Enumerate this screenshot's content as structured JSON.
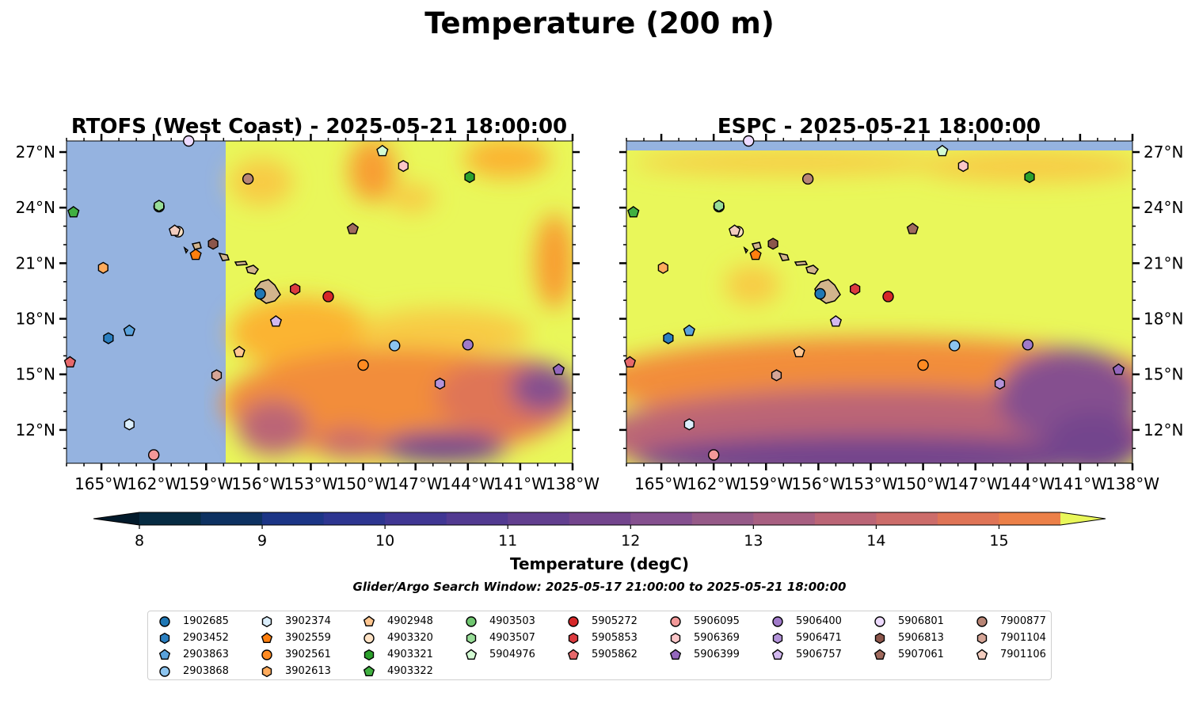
{
  "figure": {
    "suptitle": "Temperature (200 m)",
    "colorbar_label": "Temperature (degC)",
    "search_window": "Glider/Argo Search Window: 2025-05-17 21:00:00 to 2025-05-21 18:00:00"
  },
  "chart_data": [
    {
      "type": "heatmap",
      "title": "RTOFS (West Coast) - 2025-05-21 18:00:00",
      "xlabel": "",
      "ylabel": "",
      "x_ticks": [
        "165°W",
        "162°W",
        "159°W",
        "156°W",
        "153°W",
        "150°W",
        "147°W",
        "144°W",
        "141°W",
        "138°W"
      ],
      "y_ticks": [
        "27°N",
        "24°N",
        "21°N",
        "18°N",
        "15°N",
        "12°N"
      ],
      "xlim": [
        -167,
        -138
      ],
      "ylim": [
        10.2,
        27.6
      ],
      "model_domain_west_edge_lon": -157.9,
      "no_data_color": "#95b3e0",
      "grid": false
    },
    {
      "type": "heatmap",
      "title": "ESPC - 2025-05-21 18:00:00",
      "xlabel": "",
      "ylabel": "",
      "x_ticks": [
        "165°W",
        "162°W",
        "159°W",
        "156°W",
        "153°W",
        "150°W",
        "147°W",
        "144°W",
        "141°W",
        "138°W"
      ],
      "y_ticks": [
        "27°N",
        "24°N",
        "21°N",
        "18°N",
        "15°N",
        "12°N"
      ],
      "xlim": [
        -167,
        -138
      ],
      "ylim": [
        10.2,
        27.6
      ],
      "model_domain_north_edge_lat": 27.1,
      "no_data_color": "#95b3e0",
      "grid": false
    }
  ],
  "colorbar": {
    "min": 8,
    "max": 15.5,
    "step": 0.5,
    "ticks": [
      "8",
      "9",
      "10",
      "11",
      "12",
      "13",
      "14",
      "15"
    ],
    "colors": [
      "#062b42",
      "#0d3161",
      "#1c3586",
      "#2d3590",
      "#403693",
      "#523a91",
      "#623f8f",
      "#73458d",
      "#85508f",
      "#965a88",
      "#a85f81",
      "#bb6576",
      "#cc6c6a",
      "#df7456",
      "#ec8048",
      "#f28d3b",
      "#f89e30",
      "#fbb433",
      "#f8cb45",
      "#e9f75a"
    ],
    "extend": "both"
  },
  "legend": {
    "columns": [
      [
        {
          "label": "1902685",
          "marker": "circle",
          "color": "#1f77b4"
        },
        {
          "label": "2903452",
          "marker": "hexagon",
          "color": "#2b7fc0"
        },
        {
          "label": "2903863",
          "marker": "pentagon",
          "color": "#5aa2dc"
        },
        {
          "label": "2903868",
          "marker": "circle",
          "color": "#8cc4ef"
        }
      ],
      [
        {
          "label": "3902374",
          "marker": "hexagon",
          "color": "#dbeefc"
        },
        {
          "label": "3902559",
          "marker": "pentagon",
          "color": "#ff7f0e"
        },
        {
          "label": "3902561",
          "marker": "circle",
          "color": "#ff8b22"
        },
        {
          "label": "3902613",
          "marker": "hexagon",
          "color": "#ffab5c"
        }
      ],
      [
        {
          "label": "4902948",
          "marker": "pentagon",
          "color": "#ffc690"
        },
        {
          "label": "4903320",
          "marker": "circle",
          "color": "#ffe2c4"
        },
        {
          "label": "4903321",
          "marker": "hexagon",
          "color": "#2ca02c"
        },
        {
          "label": "4903322",
          "marker": "pentagon",
          "color": "#41b041"
        }
      ],
      [
        {
          "label": "4903503",
          "marker": "circle",
          "color": "#70c670"
        },
        {
          "label": "4903507",
          "marker": "hexagon",
          "color": "#98dd98"
        },
        {
          "label": "5904976",
          "marker": "pentagon",
          "color": "#d3fbd3"
        }
      ],
      [
        {
          "label": "5905272",
          "marker": "circle",
          "color": "#d62728"
        },
        {
          "label": "5905853",
          "marker": "hexagon",
          "color": "#dc3b3f"
        },
        {
          "label": "5905862",
          "marker": "pentagon",
          "color": "#e6686b"
        }
      ],
      [
        {
          "label": "5906095",
          "marker": "circle",
          "color": "#f29898"
        },
        {
          "label": "5906369",
          "marker": "hexagon",
          "color": "#fbc6c8"
        },
        {
          "label": "5906399",
          "marker": "pentagon",
          "color": "#9467bd"
        }
      ],
      [
        {
          "label": "5906400",
          "marker": "circle",
          "color": "#a07ac9"
        },
        {
          "label": "5906471",
          "marker": "hexagon",
          "color": "#b393d9"
        },
        {
          "label": "5906757",
          "marker": "pentagon",
          "color": "#d2b8ef"
        }
      ],
      [
        {
          "label": "5906801",
          "marker": "circle",
          "color": "#eedbff"
        },
        {
          "label": "5906813",
          "marker": "hexagon",
          "color": "#8c564b"
        },
        {
          "label": "5907061",
          "marker": "pentagon",
          "color": "#a06a5d"
        }
      ],
      [
        {
          "label": "7900877",
          "marker": "circle",
          "color": "#b88575"
        },
        {
          "label": "7901104",
          "marker": "hexagon",
          "color": "#d5a597"
        },
        {
          "label": "7901106",
          "marker": "pentagon",
          "color": "#f3cdbf"
        }
      ]
    ]
  },
  "floats": [
    {
      "id": "1902685",
      "lon": -155.9,
      "lat": 19.35,
      "marker": "circle",
      "color": "#1f77b4"
    },
    {
      "id": "2903452",
      "lon": -164.6,
      "lat": 16.95,
      "marker": "hexagon",
      "color": "#2b7fc0"
    },
    {
      "id": "2903863",
      "lon": -163.4,
      "lat": 17.35,
      "marker": "pentagon",
      "color": "#5aa2dc"
    },
    {
      "id": "2903868",
      "lon": -148.2,
      "lat": 16.55,
      "marker": "circle",
      "color": "#8cc4ef"
    },
    {
      "id": "3902374",
      "lon": -163.4,
      "lat": 12.3,
      "marker": "hexagon",
      "color": "#dbeefc"
    },
    {
      "id": "3902559",
      "lon": -159.6,
      "lat": 21.45,
      "marker": "pentagon",
      "color": "#ff7f0e"
    },
    {
      "id": "3902561",
      "lon": -150.0,
      "lat": 15.5,
      "marker": "circle",
      "color": "#ff8b22"
    },
    {
      "id": "3902613",
      "lon": -164.9,
      "lat": 20.75,
      "marker": "hexagon",
      "color": "#ffab5c"
    },
    {
      "id": "4902948",
      "lon": -157.1,
      "lat": 16.2,
      "marker": "pentagon",
      "color": "#ffc690"
    },
    {
      "id": "4903320",
      "lon": -160.6,
      "lat": 22.7,
      "marker": "circle",
      "color": "#ffe2c4"
    },
    {
      "id": "4903321",
      "lon": -143.9,
      "lat": 25.65,
      "marker": "hexagon",
      "color": "#2ca02c"
    },
    {
      "id": "4903322",
      "lon": -166.6,
      "lat": 23.75,
      "marker": "pentagon",
      "color": "#41b041"
    },
    {
      "id": "4903503",
      "lon": -161.7,
      "lat": 24.05,
      "marker": "circle",
      "color": "#70c670"
    },
    {
      "id": "4903507",
      "lon": -161.7,
      "lat": 24.1,
      "marker": "hexagon",
      "color": "#98dd98"
    },
    {
      "id": "5904976",
      "lon": -148.9,
      "lat": 27.05,
      "marker": "pentagon",
      "color": "#d3fbd3"
    },
    {
      "id": "5905272",
      "lon": -152.0,
      "lat": 19.2,
      "marker": "circle",
      "color": "#d62728"
    },
    {
      "id": "5905853",
      "lon": -153.9,
      "lat": 19.6,
      "marker": "hexagon",
      "color": "#dc3b3f"
    },
    {
      "id": "5905862",
      "lon": -166.8,
      "lat": 15.65,
      "marker": "pentagon",
      "color": "#e6686b"
    },
    {
      "id": "5906095",
      "lon": -162.0,
      "lat": 10.65,
      "marker": "circle",
      "color": "#f29898"
    },
    {
      "id": "5906369",
      "lon": -147.7,
      "lat": 26.25,
      "marker": "hexagon",
      "color": "#fbc6c8"
    },
    {
      "id": "5906399",
      "lon": -138.8,
      "lat": 15.25,
      "marker": "pentagon",
      "color": "#9467bd"
    },
    {
      "id": "5906400",
      "lon": -144.0,
      "lat": 16.6,
      "marker": "circle",
      "color": "#a07ac9"
    },
    {
      "id": "5906471",
      "lon": -145.6,
      "lat": 14.5,
      "marker": "hexagon",
      "color": "#b393d9"
    },
    {
      "id": "5906757",
      "lon": -155.0,
      "lat": 17.85,
      "marker": "pentagon",
      "color": "#d2b8ef"
    },
    {
      "id": "5906801",
      "lon": -160.0,
      "lat": 27.6,
      "marker": "circle",
      "color": "#eedbff"
    },
    {
      "id": "5906813",
      "lon": -158.6,
      "lat": 22.05,
      "marker": "hexagon",
      "color": "#8c564b"
    },
    {
      "id": "5907061",
      "lon": -150.6,
      "lat": 22.85,
      "marker": "pentagon",
      "color": "#a06a5d"
    },
    {
      "id": "7900877",
      "lon": -156.6,
      "lat": 25.55,
      "marker": "circle",
      "color": "#b88575"
    },
    {
      "id": "7901104",
      "lon": -158.4,
      "lat": 14.95,
      "marker": "hexagon",
      "color": "#d5a597"
    },
    {
      "id": "7901106",
      "lon": -160.8,
      "lat": 22.75,
      "marker": "pentagon",
      "color": "#f3cdbf"
    }
  ]
}
